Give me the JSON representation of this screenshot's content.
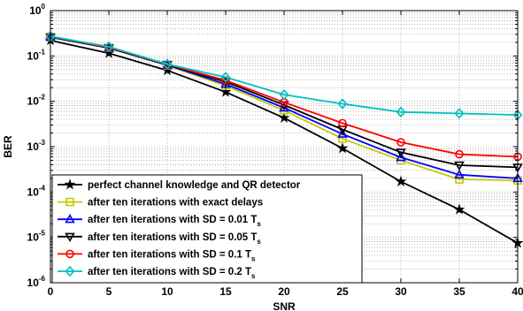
{
  "chart_data": {
    "type": "line",
    "title": "",
    "xlabel": "SNR",
    "ylabel": "BER",
    "xlim": [
      0,
      40
    ],
    "ylim": [
      1e-06,
      1
    ],
    "yscale": "log",
    "grid": true,
    "legend_position": "bottom-left",
    "x": [
      0,
      5,
      10,
      15,
      20,
      25,
      30,
      35,
      40
    ],
    "x_ticks": [
      "0",
      "5",
      "10",
      "15",
      "20",
      "25",
      "30",
      "35",
      "40"
    ],
    "y_ticks": [
      {
        "base": "10",
        "exp": "0"
      },
      {
        "base": "10",
        "exp": "-1"
      },
      {
        "base": "10",
        "exp": "-2"
      },
      {
        "base": "10",
        "exp": "-3"
      },
      {
        "base": "10",
        "exp": "-4"
      },
      {
        "base": "10",
        "exp": "-5"
      },
      {
        "base": "10",
        "exp": "-6"
      }
    ],
    "series": [
      {
        "name": "perfect channel knowledge and QR detector",
        "color": "#000000",
        "marker": "star",
        "values": [
          0.22,
          0.115,
          0.048,
          0.016,
          0.0043,
          0.00092,
          0.00017,
          4.1e-05,
          7.5e-06
        ]
      },
      {
        "name": "after ten iterations with exact delays",
        "name_suffix": "",
        "color": "#c8c800",
        "marker": "square",
        "values": [
          0.26,
          0.15,
          0.062,
          0.022,
          0.0063,
          0.0015,
          0.0005,
          0.00019,
          0.00018
        ]
      },
      {
        "name": "after ten iterations with SD = 0.01 T",
        "name_suffix": "s",
        "color": "#0000ff",
        "marker": "triangle-up",
        "values": [
          0.26,
          0.15,
          0.063,
          0.024,
          0.0072,
          0.0019,
          0.00058,
          0.00024,
          0.0002
        ]
      },
      {
        "name": "after ten iterations with SD = 0.05 T",
        "name_suffix": "s",
        "color": "#000000",
        "marker": "triangle-down",
        "values": [
          0.26,
          0.15,
          0.064,
          0.027,
          0.0083,
          0.0024,
          0.00075,
          0.00039,
          0.00035
        ]
      },
      {
        "name": "after ten iterations with SD = 0.1 T",
        "name_suffix": "s",
        "color": "#ff0000",
        "marker": "circle",
        "values": [
          0.27,
          0.155,
          0.065,
          0.029,
          0.0095,
          0.0033,
          0.00125,
          0.00068,
          0.0006
        ]
      },
      {
        "name": "after ten iterations with SD = 0.2 T",
        "name_suffix": "s",
        "color": "#00c0c0",
        "marker": "diamond",
        "values": [
          0.27,
          0.16,
          0.066,
          0.034,
          0.014,
          0.0088,
          0.0058,
          0.0054,
          0.005
        ]
      }
    ]
  }
}
